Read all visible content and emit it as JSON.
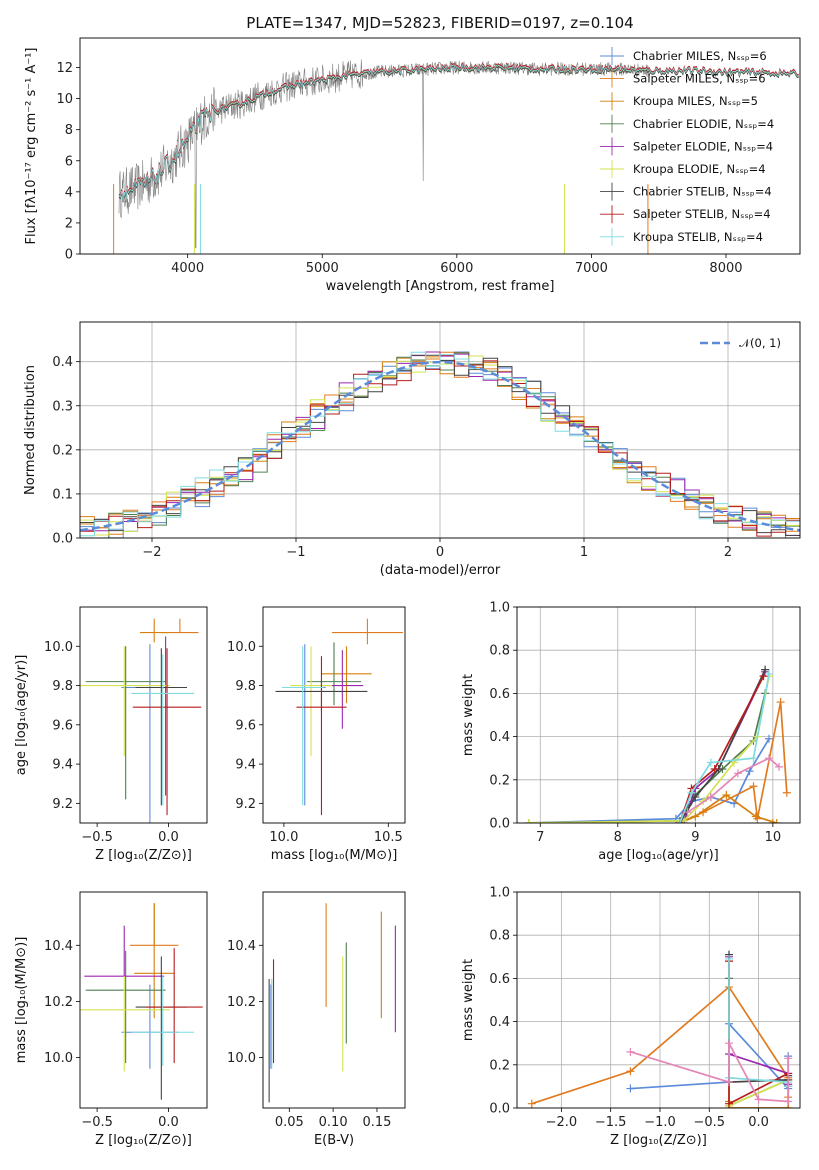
{
  "colors": [
    "#5b8bd9",
    "#e07b1f",
    "#d67f0a",
    "#4f7f4f",
    "#9b27b0",
    "#d4e34f",
    "#444444",
    "#b71c1c",
    "#7fdbe0"
  ],
  "chart_data": [
    {
      "id": "spectrum",
      "type": "line",
      "title": "PLATE=1347, MJD=52823, FIBERID=0197, z=0.104",
      "xlabel": "wavelength [Angstrom, rest frame]",
      "ylabel": "Flux [fλ10⁻¹⁷ erg cm⁻² s⁻¹ A⁻¹]",
      "xlim": [
        3200,
        8550
      ],
      "ylim": [
        0,
        13.9
      ],
      "xticks": [
        4000,
        5000,
        6000,
        7000,
        8000
      ],
      "yticks": [
        0,
        2,
        4,
        6,
        8,
        10,
        12
      ],
      "grid": false,
      "legend_position": "right",
      "legend": [
        "Chabrier MILES, Nₛₛₚ=6",
        "Salpeter MILES, Nₛₛₚ=6",
        "Kroupa MILES, Nₛₛₚ=5",
        "Chabrier ELODIE, Nₛₛₚ=4",
        "Salpeter ELODIE, Nₛₛₚ=4",
        "Kroupa ELODIE, Nₛₛₚ=4",
        "Chabrier STELIB, Nₛₛₚ=4",
        "Salpeter STELIB, Nₛₛₚ=4",
        "Kroupa STELIB, Nₛₛₚ=4"
      ],
      "continuum": {
        "x": [
          3500,
          3600,
          3700,
          3800,
          3900,
          4000,
          4100,
          4200,
          4400,
          4600,
          4800,
          5000,
          5200,
          5400,
          5600,
          5800,
          6000,
          6200,
          6400,
          6600,
          6800,
          7000,
          7200,
          7400,
          7600,
          7800,
          8000,
          8200,
          8500
        ],
        "y": [
          3.9,
          4.2,
          4.6,
          5.3,
          6.2,
          7.3,
          8.6,
          9.2,
          9.7,
          10.4,
          10.9,
          11.2,
          11.5,
          11.7,
          11.8,
          11.9,
          12.0,
          12.0,
          12.0,
          11.9,
          11.9,
          11.9,
          11.9,
          11.8,
          11.8,
          11.8,
          11.7,
          11.7,
          11.6
        ]
      }
    },
    {
      "id": "residuals",
      "type": "line",
      "title": "",
      "xlabel": "(data-model)/error",
      "ylabel": "Normed distribution",
      "xlim": [
        -2.5,
        2.5
      ],
      "ylim": [
        0,
        0.49
      ],
      "xticks": [
        -2,
        -1,
        0,
        1,
        2
      ],
      "yticks": [
        0.0,
        0.1,
        0.2,
        0.3,
        0.4
      ],
      "grid": true,
      "legend_position": "top-right",
      "legend": [
        "𝒩(0, 1)"
      ]
    },
    {
      "id": "age-vs-Z",
      "type": "scatter",
      "xlabel": "Z [log₁₀(Z/Z⊙)]",
      "ylabel": "age  [log₁₀(age/yr)]",
      "xlim": [
        -0.62,
        0.27
      ],
      "ylim": [
        9.1,
        10.2
      ],
      "xticks": [
        -0.5,
        0.0
      ],
      "yticks": [
        9.2,
        9.4,
        9.6,
        9.8,
        10.0
      ],
      "points": [
        {
          "x": -0.13,
          "y": 9.79,
          "xerr": 0.2,
          "yerr": [
            0.8,
            0.22
          ]
        },
        {
          "x": 0.08,
          "y": 10.07,
          "xerr": 0.13,
          "yerr": [
            0.0,
            0.07
          ]
        },
        {
          "x": -0.1,
          "y": 10.07,
          "xerr": 0.1,
          "yerr": [
            0.05,
            0.07
          ]
        },
        {
          "x": -0.3,
          "y": 9.82,
          "xerr": 0.28,
          "yerr": [
            0.6,
            0.18
          ]
        },
        {
          "x": -0.02,
          "y": 9.79,
          "xerr": 0.12,
          "yerr": [
            0.55,
            0.26
          ]
        },
        {
          "x": -0.31,
          "y": 9.8,
          "xerr": 0.32,
          "yerr": [
            0.36,
            0.2
          ]
        },
        {
          "x": -0.05,
          "y": 9.79,
          "xerr": 0.18,
          "yerr": [
            0.6,
            0.2
          ]
        },
        {
          "x": -0.01,
          "y": 9.69,
          "xerr": 0.24,
          "yerr": [
            0.55,
            0.3
          ]
        },
        {
          "x": -0.04,
          "y": 9.76,
          "xerr": 0.22,
          "yerr": [
            0.57,
            0.2
          ]
        }
      ]
    },
    {
      "id": "age-vs-mass",
      "type": "scatter",
      "xlabel": "mass [log₁₀(M/M⊙)]",
      "ylabel": "",
      "xlim": [
        9.9,
        10.58
      ],
      "ylim": [
        9.1,
        10.2
      ],
      "xticks": [
        10.0,
        10.5
      ],
      "yticks": [
        9.2,
        9.4,
        9.6,
        9.8,
        10.0
      ],
      "points": [
        {
          "x": 10.1,
          "y": 9.79,
          "xerr": 0.1,
          "yerr": [
            0.6,
            0.22
          ]
        },
        {
          "x": 10.4,
          "y": 10.07,
          "xerr": 0.17,
          "yerr": [
            0.06,
            0.07
          ]
        },
        {
          "x": 10.3,
          "y": 9.86,
          "xerr": 0.12,
          "yerr": [
            0.15,
            0.14
          ]
        },
        {
          "x": 10.24,
          "y": 9.82,
          "xerr": 0.13,
          "yerr": [
            0.12,
            0.2
          ]
        },
        {
          "x": 10.28,
          "y": 9.8,
          "xerr": 0.1,
          "yerr": [
            0.22,
            0.18
          ]
        },
        {
          "x": 10.13,
          "y": 9.8,
          "xerr": 0.1,
          "yerr": [
            0.36,
            0.2
          ]
        },
        {
          "x": 10.18,
          "y": 9.77,
          "xerr": 0.22,
          "yerr": [
            0.1,
            0.05
          ]
        },
        {
          "x": 10.18,
          "y": 9.69,
          "xerr": 0.12,
          "yerr": [
            0.55,
            0.26
          ]
        },
        {
          "x": 10.09,
          "y": 9.79,
          "xerr": 0.1,
          "yerr": [
            0.6,
            0.21
          ]
        }
      ]
    },
    {
      "id": "massweight-vs-age",
      "type": "line",
      "xlabel": "age  [log₁₀(age/yr)]",
      "ylabel": "mass weight",
      "xlim": [
        6.7,
        10.35
      ],
      "ylim": [
        0,
        1.0
      ],
      "xticks": [
        7,
        8,
        9,
        10
      ],
      "yticks": [
        0.0,
        0.2,
        0.4,
        0.6,
        0.8,
        1.0
      ],
      "grid": true,
      "series": [
        {
          "x": [
            6.85,
            8.75,
            8.95,
            9.2,
            9.5,
            9.7,
            9.95
          ],
          "y": [
            0.0,
            0.02,
            0.1,
            0.12,
            0.09,
            0.24,
            0.39
          ]
        },
        {
          "x": [
            8.8,
            9.1,
            9.75,
            9.8,
            10.1,
            10.18
          ],
          "y": [
            0.0,
            0.05,
            0.17,
            0.02,
            0.56,
            0.14
          ]
        },
        {
          "x": [
            8.8,
            9.0,
            9.4,
            9.78,
            10.05,
            10.0
          ],
          "y": [
            0.0,
            0.03,
            0.13,
            0.03,
            0.0,
            0.0
          ]
        },
        {
          "x": [
            6.85,
            8.8,
            9.0,
            9.35,
            9.75,
            9.9
          ],
          "y": [
            0.0,
            0.01,
            0.13,
            0.25,
            0.38,
            0.6
          ]
        },
        {
          "x": [
            8.85,
            9.0,
            9.3,
            9.9
          ],
          "y": [
            0.0,
            0.16,
            0.25,
            0.7
          ]
        },
        {
          "x": [
            6.85,
            8.85,
            9.1,
            9.5,
            9.8,
            9.95
          ],
          "y": [
            0.0,
            0.01,
            0.1,
            0.28,
            0.4,
            0.68
          ]
        },
        {
          "x": [
            8.8,
            9.0,
            9.3,
            9.9
          ],
          "y": [
            0.0,
            0.12,
            0.25,
            0.71
          ]
        },
        {
          "x": [
            8.8,
            8.95,
            9.25,
            9.88
          ],
          "y": [
            0.0,
            0.16,
            0.25,
            0.68
          ]
        },
        {
          "x": [
            8.8,
            8.95,
            9.2,
            9.75,
            9.95
          ],
          "y": [
            0.0,
            0.14,
            0.28,
            0.3,
            0.69
          ]
        }
      ],
      "extra_series": {
        "x": [
          8.9,
          9.2,
          9.55,
          9.95,
          10.08
        ],
        "y": [
          0.05,
          0.12,
          0.23,
          0.3,
          0.26
        ]
      }
    },
    {
      "id": "mass-vs-Z",
      "type": "scatter",
      "xlabel": "Z [log₁₀(Z/Z⊙)]",
      "ylabel": "mass [log₁₀(M/M⊙)]",
      "xlim": [
        -0.62,
        0.27
      ],
      "ylim": [
        9.82,
        10.59
      ],
      "xticks": [
        -0.5,
        0.0
      ],
      "yticks": [
        10.0,
        10.2,
        10.4
      ],
      "points": [
        {
          "x": -0.13,
          "y": 10.09,
          "xerr": 0.2,
          "yerr": [
            0.13,
            0.17
          ]
        },
        {
          "x": -0.1,
          "y": 10.4,
          "xerr": 0.17,
          "yerr": [
            0.0,
            0.15
          ]
        },
        {
          "x": -0.1,
          "y": 10.3,
          "xerr": 0.14,
          "yerr": [
            0.16,
            0.25
          ]
        },
        {
          "x": -0.3,
          "y": 10.24,
          "xerr": 0.28,
          "yerr": [
            0.26,
            0.14
          ]
        },
        {
          "x": -0.31,
          "y": 10.29,
          "xerr": 0.28,
          "yerr": [
            0.0,
            0.18
          ]
        },
        {
          "x": -0.31,
          "y": 10.17,
          "xerr": 0.32,
          "yerr": [
            0.22,
            0.12
          ]
        },
        {
          "x": -0.05,
          "y": 10.18,
          "xerr": 0.18,
          "yerr": [
            0.33,
            0.18
          ]
        },
        {
          "x": 0.04,
          "y": 10.18,
          "xerr": 0.2,
          "yerr": [
            0.2,
            0.21
          ]
        },
        {
          "x": -0.04,
          "y": 10.09,
          "xerr": 0.22,
          "yerr": [
            0.12,
            0.2
          ]
        }
      ]
    },
    {
      "id": "mass-vs-ebv",
      "type": "scatter",
      "xlabel": "E(B-V)",
      "ylabel": "",
      "xlim": [
        0.02,
        0.182
      ],
      "ylim": [
        9.82,
        10.59
      ],
      "xticks": [
        0.05,
        0.1,
        0.15
      ],
      "yticks": [
        10.0,
        10.2,
        10.4
      ],
      "points": [
        {
          "x": 0.029,
          "y": 10.09,
          "xerr": 0,
          "yerr": [
            0.13,
            0.17
          ]
        },
        {
          "x": 0.092,
          "y": 10.4,
          "xerr": 0,
          "yerr": [
            0.22,
            0.15
          ]
        },
        {
          "x": 0.155,
          "y": 10.3,
          "xerr": 0,
          "yerr": [
            0.16,
            0.22
          ]
        },
        {
          "x": 0.115,
          "y": 10.24,
          "xerr": 0,
          "yerr": [
            0.19,
            0.17
          ]
        },
        {
          "x": 0.171,
          "y": 10.29,
          "xerr": 0,
          "yerr": [
            0.2,
            0.18
          ]
        },
        {
          "x": 0.111,
          "y": 10.17,
          "xerr": 0,
          "yerr": [
            0.22,
            0.19
          ]
        },
        {
          "x": 0.027,
          "y": 10.09,
          "xerr": 0,
          "yerr": [
            0.25,
            0.19
          ]
        },
        {
          "x": 0.032,
          "y": 10.18,
          "xerr": 0,
          "yerr": [
            0.2,
            0.17
          ]
        },
        {
          "x": 0.03,
          "y": 10.12,
          "xerr": 0,
          "yerr": [
            0.16,
            0.16
          ]
        }
      ]
    },
    {
      "id": "massweight-vs-Z",
      "type": "line",
      "xlabel": "Z [log₁₀(Z/Z⊙)]",
      "ylabel": "mass weight",
      "xlim": [
        -2.45,
        0.42
      ],
      "ylim": [
        0,
        1.0
      ],
      "xticks": [
        -2.0,
        -1.5,
        -1.0,
        -0.5,
        0.0
      ],
      "yticks": [
        0.0,
        0.2,
        0.4,
        0.6,
        0.8,
        1.0
      ],
      "grid": true,
      "series": [
        {
          "x": [
            -1.3,
            -0.3,
            -0.3,
            0.3,
            0.3
          ],
          "y": [
            0.09,
            0.12,
            0.39,
            0.09,
            0.24
          ]
        },
        {
          "x": [
            -2.3,
            -1.3,
            -0.3,
            0.3,
            0.3
          ],
          "y": [
            0.02,
            0.17,
            0.56,
            0.14,
            0.05
          ]
        },
        {
          "x": [
            -0.3,
            -0.3,
            0.3,
            0.3
          ],
          "y": [
            0.03,
            0.0,
            0.0,
            0.13
          ]
        },
        {
          "x": [
            -0.3,
            -0.3,
            0.3,
            0.3
          ],
          "y": [
            0.6,
            0.01,
            0.13,
            0.1
          ]
        },
        {
          "x": [
            -0.3,
            -0.3,
            0.3,
            0.3
          ],
          "y": [
            0.7,
            0.25,
            0.16,
            0.11
          ]
        },
        {
          "x": [
            -0.3,
            -0.3,
            0.3
          ],
          "y": [
            0.68,
            0.01,
            0.13
          ]
        },
        {
          "x": [
            -0.3,
            -0.3,
            0.3,
            0.3
          ],
          "y": [
            0.71,
            0.12,
            0.13,
            0.15
          ]
        },
        {
          "x": [
            -0.3,
            -0.3,
            0.3
          ],
          "y": [
            0.68,
            0.02,
            0.16
          ]
        },
        {
          "x": [
            -0.3,
            -0.3,
            0.3,
            0.3
          ],
          "y": [
            0.69,
            0.14,
            0.12,
            0.1
          ]
        }
      ],
      "extra_series": {
        "x": [
          -1.3,
          -0.3,
          -0.3,
          0.0,
          0.3,
          0.3
        ],
        "y": [
          0.26,
          0.12,
          0.3,
          0.04,
          0.03,
          0.23
        ]
      }
    }
  ]
}
